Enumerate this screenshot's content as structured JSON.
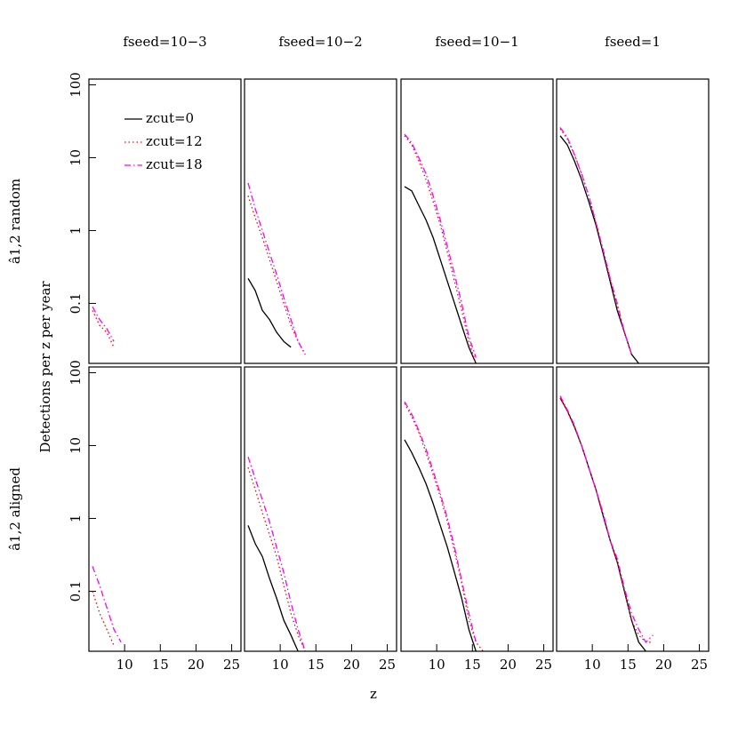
{
  "figure": {
    "ylabel": "Detections per z per year",
    "xlabel": "z"
  },
  "chart_data": [
    {
      "type": "line",
      "title": "fseed=10−3",
      "ylabel": "â1,2 random",
      "log_y": true,
      "ylim": [
        0.015,
        120
      ],
      "yticks": [
        0.1,
        1,
        10,
        100
      ],
      "xlim": [
        5,
        26.3
      ],
      "legend": "upper left",
      "x": [
        5.5,
        6.5,
        7.5,
        8.5,
        9.5,
        10.5,
        11.5,
        12.5,
        13.5,
        14.5,
        15.5,
        16.5,
        17.5,
        18.5,
        19.5
      ],
      "series": [
        {
          "name": "zcut=0",
          "color": "#000000",
          "dash": "solid",
          "values": [
            null,
            null,
            null,
            null,
            null,
            null,
            null,
            null,
            null,
            null,
            null,
            null,
            null,
            null,
            null
          ]
        },
        {
          "name": "zcut=12",
          "color": "#ff0000",
          "dash": "dotted",
          "values": [
            0.08,
            0.05,
            0.04,
            0.025,
            null,
            null,
            null,
            null,
            null,
            null,
            null,
            null,
            null,
            null,
            null
          ]
        },
        {
          "name": "zcut=18",
          "color": "#ff00ff",
          "dash": "dashdot",
          "values": [
            0.09,
            0.06,
            0.045,
            0.03,
            null,
            null,
            null,
            null,
            null,
            null,
            null,
            null,
            null,
            null,
            null
          ]
        }
      ]
    },
    {
      "type": "line",
      "title": "fseed=10−2",
      "log_y": true,
      "ylim": [
        0.015,
        120
      ],
      "xlim": [
        5,
        26.3
      ],
      "x": [
        5.5,
        6.5,
        7.5,
        8.5,
        9.5,
        10.5,
        11.5,
        12.5,
        13.5,
        14.5,
        15.5,
        16.5,
        17.5,
        18.5,
        19.5
      ],
      "series": [
        {
          "color": "#000000",
          "dash": "solid",
          "values": [
            0.22,
            0.15,
            0.08,
            0.06,
            0.04,
            0.03,
            0.025,
            null,
            null,
            null,
            null,
            null,
            null,
            null,
            null
          ]
        },
        {
          "color": "#ff0000",
          "dash": "dotted",
          "values": [
            3,
            1.5,
            0.8,
            0.4,
            0.2,
            0.1,
            0.05,
            0.03,
            0.02,
            null,
            null,
            null,
            null,
            null,
            null
          ]
        },
        {
          "color": "#ff00ff",
          "dash": "dashdot",
          "values": [
            4.5,
            2,
            1,
            0.5,
            0.25,
            0.12,
            0.06,
            0.03,
            0.02,
            null,
            null,
            null,
            null,
            null,
            null
          ]
        }
      ]
    },
    {
      "type": "line",
      "title": "fseed=10−1",
      "log_y": true,
      "ylim": [
        0.015,
        120
      ],
      "xlim": [
        5,
        26.3
      ],
      "x": [
        5.5,
        6.5,
        7.5,
        8.5,
        9.5,
        10.5,
        11.5,
        12.5,
        13.5,
        14.5,
        15.5,
        16.5,
        17.5,
        18.5,
        19.5
      ],
      "series": [
        {
          "color": "#000000",
          "dash": "solid",
          "values": [
            4,
            3.5,
            2.2,
            1.4,
            0.8,
            0.4,
            0.2,
            0.1,
            0.05,
            0.025,
            0.015,
            null,
            null,
            null,
            null
          ]
        },
        {
          "color": "#ff0000",
          "dash": "dotted",
          "values": [
            20,
            15,
            9,
            5,
            2.5,
            1.2,
            0.5,
            0.2,
            0.08,
            0.03,
            0.015,
            null,
            null,
            null,
            null
          ]
        },
        {
          "color": "#ff00ff",
          "dash": "dashdot",
          "values": [
            21,
            16,
            10,
            6,
            3,
            1.4,
            0.6,
            0.25,
            0.1,
            0.035,
            0.018,
            null,
            null,
            null,
            null
          ]
        }
      ]
    },
    {
      "type": "line",
      "title": "fseed=1",
      "log_y": true,
      "ylim": [
        0.015,
        120
      ],
      "xlim": [
        5,
        26.3
      ],
      "x": [
        5.5,
        6.5,
        7.5,
        8.5,
        9.5,
        10.5,
        11.5,
        12.5,
        13.5,
        14.5,
        15.5,
        16.5,
        17.5,
        18.5,
        19.5
      ],
      "series": [
        {
          "color": "#000000",
          "dash": "solid",
          "values": [
            20,
            15,
            9,
            5,
            2.5,
            1.2,
            0.5,
            0.2,
            0.08,
            0.04,
            0.02,
            0.015,
            null,
            null,
            null
          ]
        },
        {
          "color": "#ff0000",
          "dash": "dotted",
          "values": [
            25,
            18,
            11,
            6,
            3,
            1.3,
            0.55,
            0.22,
            0.09,
            0.04,
            0.02,
            null,
            null,
            null,
            null
          ]
        },
        {
          "color": "#ff00ff",
          "dash": "dashdot",
          "values": [
            26,
            19,
            11,
            6,
            3,
            1.3,
            0.55,
            0.22,
            0.1,
            0.04,
            0.02,
            null,
            null,
            null,
            null
          ]
        }
      ]
    },
    {
      "type": "line",
      "ylabel": "â1,2 aligned",
      "log_y": true,
      "ylim": [
        0.015,
        120
      ],
      "yticks": [
        0.1,
        1,
        10,
        100
      ],
      "xlim": [
        5,
        26.3
      ],
      "xticks": [
        10,
        15,
        20,
        25
      ],
      "x": [
        5.5,
        6.5,
        7.5,
        8.5,
        9.5,
        10.5,
        11.5,
        12.5,
        13.5,
        14.5,
        15.5,
        16.5,
        17.5,
        18.5,
        19.5
      ],
      "series": [
        {
          "color": "#000000",
          "dash": "solid",
          "values": [
            null,
            null,
            null,
            null,
            null,
            null,
            null,
            null,
            null,
            null,
            null,
            null,
            null,
            null,
            null
          ]
        },
        {
          "color": "#ff0000",
          "dash": "dotted",
          "values": [
            0.1,
            0.05,
            0.03,
            0.018,
            null,
            null,
            null,
            null,
            null,
            null,
            null,
            null,
            null,
            null,
            null
          ]
        },
        {
          "color": "#ff00ff",
          "dash": "dashdot",
          "values": [
            0.22,
            0.12,
            0.06,
            0.03,
            0.02,
            null,
            null,
            null,
            null,
            null,
            null,
            null,
            null,
            null,
            null
          ]
        }
      ]
    },
    {
      "type": "line",
      "log_y": true,
      "ylim": [
        0.015,
        120
      ],
      "xlim": [
        5,
        26.3
      ],
      "xticks": [
        10,
        15,
        20,
        25
      ],
      "x": [
        5.5,
        6.5,
        7.5,
        8.5,
        9.5,
        10.5,
        11.5,
        12.5,
        13.5,
        14.5,
        15.5,
        16.5,
        17.5,
        18.5,
        19.5
      ],
      "series": [
        {
          "color": "#000000",
          "dash": "solid",
          "values": [
            0.8,
            0.45,
            0.3,
            0.15,
            0.08,
            0.04,
            0.025,
            0.015,
            null,
            null,
            null,
            null,
            null,
            null,
            null
          ]
        },
        {
          "color": "#ff0000",
          "dash": "dotted",
          "values": [
            5,
            2.5,
            1.2,
            0.6,
            0.3,
            0.12,
            0.05,
            0.025,
            0.015,
            null,
            null,
            null,
            null,
            null,
            null
          ]
        },
        {
          "color": "#ff00ff",
          "dash": "dashdot",
          "values": [
            7,
            3.5,
            1.8,
            0.9,
            0.4,
            0.18,
            0.07,
            0.03,
            0.015,
            null,
            null,
            null,
            null,
            null,
            null
          ]
        }
      ]
    },
    {
      "type": "line",
      "log_y": true,
      "ylim": [
        0.015,
        120
      ],
      "xlim": [
        5,
        26.3
      ],
      "xticks": [
        10,
        15,
        20,
        25
      ],
      "x": [
        5.5,
        6.5,
        7.5,
        8.5,
        9.5,
        10.5,
        11.5,
        12.5,
        13.5,
        14.5,
        15.5,
        16.5,
        17.5,
        18.5,
        19.5
      ],
      "series": [
        {
          "color": "#000000",
          "dash": "solid",
          "values": [
            12,
            8,
            5,
            3,
            1.6,
            0.8,
            0.4,
            0.18,
            0.08,
            0.03,
            0.015,
            null,
            null,
            null,
            null
          ]
        },
        {
          "color": "#ff0000",
          "dash": "dotted",
          "values": [
            38,
            25,
            15,
            8,
            4,
            2,
            0.9,
            0.35,
            0.13,
            0.04,
            0.02,
            0.015,
            null,
            null,
            null
          ]
        },
        {
          "color": "#ff00ff",
          "dash": "dashdot",
          "values": [
            40,
            27,
            16,
            9,
            4.5,
            2.2,
            1,
            0.4,
            0.14,
            0.05,
            0.02,
            null,
            null,
            null,
            null
          ]
        }
      ]
    },
    {
      "type": "line",
      "log_y": true,
      "ylim": [
        0.015,
        120
      ],
      "xlim": [
        5,
        26.3
      ],
      "xticks": [
        10,
        15,
        20,
        25
      ],
      "x": [
        5.5,
        6.5,
        7.5,
        8.5,
        9.5,
        10.5,
        11.5,
        12.5,
        13.5,
        14.5,
        15.5,
        16.5,
        17.5,
        18.5,
        19.5
      ],
      "series": [
        {
          "color": "#000000",
          "dash": "solid",
          "values": [
            45,
            30,
            18,
            10,
            5,
            2.5,
            1.1,
            0.5,
            0.25,
            0.1,
            0.04,
            0.02,
            0.015,
            null,
            null
          ]
        },
        {
          "color": "#ff0000",
          "dash": "dotted",
          "values": [
            45,
            30,
            18,
            10,
            5,
            2.5,
            1.1,
            0.5,
            0.25,
            0.1,
            0.04,
            0.025,
            0.02,
            0.02,
            null
          ]
        },
        {
          "color": "#ff00ff",
          "dash": "dashdot",
          "values": [
            48,
            31,
            19,
            10,
            5,
            2.5,
            1.2,
            0.5,
            0.28,
            0.11,
            0.05,
            0.03,
            0.02,
            0.025,
            null
          ]
        }
      ]
    }
  ]
}
